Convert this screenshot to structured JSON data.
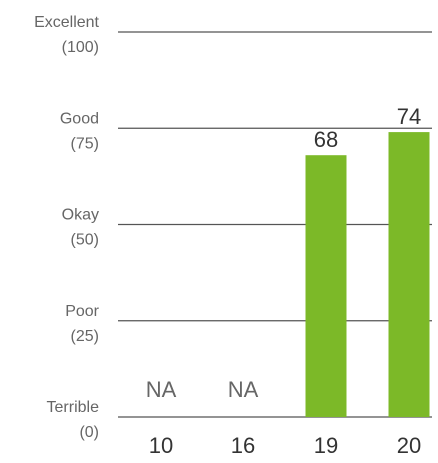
{
  "chart_data": {
    "type": "bar",
    "categories": [
      "10",
      "16",
      "19",
      "20"
    ],
    "values": [
      null,
      null,
      68,
      74
    ],
    "data_labels": [
      "NA",
      "NA",
      "68",
      "74"
    ],
    "ylim": [
      0,
      100
    ],
    "yticks": [
      {
        "value": 100,
        "line1": "Excellent",
        "line2": "(100)"
      },
      {
        "value": 75,
        "line1": "Good",
        "line2": "(75)"
      },
      {
        "value": 50,
        "line1": "Okay",
        "line2": "(50)"
      },
      {
        "value": 25,
        "line1": "Poor",
        "line2": "(25)"
      },
      {
        "value": 0,
        "line1": "Terrible",
        "line2": "(0)"
      }
    ],
    "grid": true,
    "legend": "none",
    "colors": {
      "bar": "#7cb928",
      "grid": "#555555"
    }
  }
}
